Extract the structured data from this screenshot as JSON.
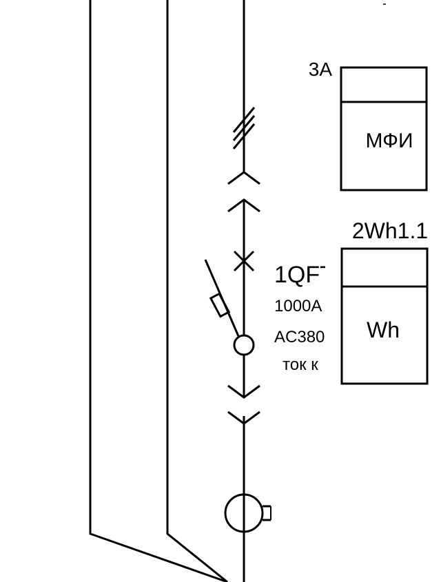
{
  "devices": {
    "meter_3a": {
      "tag": "3A",
      "text": "МФИ"
    },
    "meter_2wh": {
      "tag": "2Wh1.1",
      "text": "Wh"
    }
  },
  "breaker": {
    "tag": "1QFT",
    "rating": "1000A",
    "voltage": "AC380.",
    "note": "ток к"
  },
  "colors": {
    "line": "#000000",
    "background": "#ffffff"
  }
}
